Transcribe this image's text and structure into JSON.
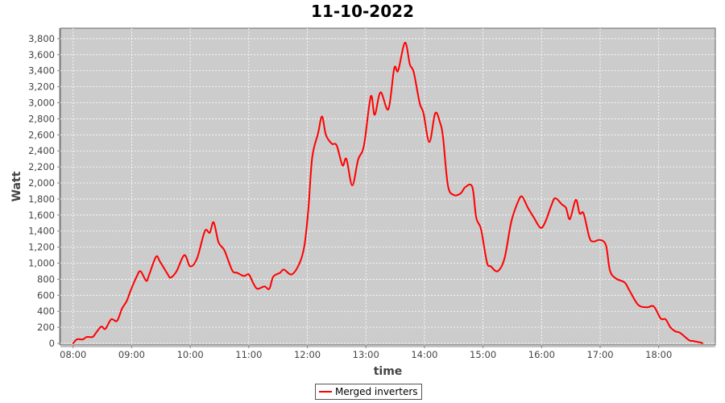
{
  "chart_data": {
    "type": "line",
    "title": "11-10-2022",
    "xlabel": "time",
    "ylabel": "Watt",
    "xlim": [
      "07:47",
      "18:58"
    ],
    "ylim": [
      -20,
      3930
    ],
    "x_ticks": [
      "08:00",
      "09:00",
      "10:00",
      "11:00",
      "12:00",
      "13:00",
      "14:00",
      "15:00",
      "16:00",
      "17:00",
      "18:00"
    ],
    "y_ticks": [
      0,
      200,
      400,
      600,
      800,
      1000,
      1200,
      1400,
      1600,
      1800,
      2000,
      2200,
      2400,
      2600,
      2800,
      3000,
      3200,
      3400,
      3600,
      3800
    ],
    "grid": true,
    "legend_position": "bottom",
    "colors": {
      "plot_background": "#cccccc",
      "grid": "#ffffff",
      "series": "#ff0000"
    },
    "series": [
      {
        "name": "Merged inverters",
        "points": [
          [
            "08:00",
            0
          ],
          [
            "08:04",
            50
          ],
          [
            "08:10",
            50
          ],
          [
            "08:14",
            80
          ],
          [
            "08:20",
            80
          ],
          [
            "08:24",
            140
          ],
          [
            "08:29",
            210
          ],
          [
            "08:33",
            180
          ],
          [
            "08:39",
            300
          ],
          [
            "08:45",
            280
          ],
          [
            "08:50",
            430
          ],
          [
            "08:55",
            530
          ],
          [
            "08:59",
            660
          ],
          [
            "09:05",
            830
          ],
          [
            "09:09",
            900
          ],
          [
            "09:15",
            780
          ],
          [
            "09:18",
            860
          ],
          [
            "09:25",
            1080
          ],
          [
            "09:29",
            1020
          ],
          [
            "09:37",
            860
          ],
          [
            "09:40",
            820
          ],
          [
            "09:46",
            900
          ],
          [
            "09:54",
            1100
          ],
          [
            "10:00",
            960
          ],
          [
            "10:07",
            1060
          ],
          [
            "10:15",
            1400
          ],
          [
            "10:20",
            1380
          ],
          [
            "10:24",
            1510
          ],
          [
            "10:29",
            1260
          ],
          [
            "10:35",
            1160
          ],
          [
            "10:43",
            910
          ],
          [
            "10:48",
            880
          ],
          [
            "10:55",
            840
          ],
          [
            "11:00",
            860
          ],
          [
            "11:05",
            740
          ],
          [
            "11:09",
            680
          ],
          [
            "11:16",
            710
          ],
          [
            "11:21",
            680
          ],
          [
            "11:25",
            830
          ],
          [
            "11:32",
            880
          ],
          [
            "11:36",
            920
          ],
          [
            "11:44",
            860
          ],
          [
            "11:52",
            1000
          ],
          [
            "11:57",
            1220
          ],
          [
            "12:01",
            1670
          ],
          [
            "12:05",
            2320
          ],
          [
            "12:11",
            2620
          ],
          [
            "12:15",
            2830
          ],
          [
            "12:19",
            2600
          ],
          [
            "12:25",
            2490
          ],
          [
            "12:30",
            2470
          ],
          [
            "12:36",
            2220
          ],
          [
            "12:40",
            2300
          ],
          [
            "12:46",
            1970
          ],
          [
            "12:52",
            2290
          ],
          [
            "12:58",
            2470
          ],
          [
            "13:05",
            3080
          ],
          [
            "13:09",
            2850
          ],
          [
            "13:15",
            3130
          ],
          [
            "13:23",
            2920
          ],
          [
            "13:29",
            3430
          ],
          [
            "13:33",
            3400
          ],
          [
            "13:40",
            3750
          ],
          [
            "13:45",
            3480
          ],
          [
            "13:49",
            3380
          ],
          [
            "13:55",
            3000
          ],
          [
            "13:59",
            2870
          ],
          [
            "14:05",
            2510
          ],
          [
            "14:11",
            2870
          ],
          [
            "14:16",
            2750
          ],
          [
            "14:19",
            2570
          ],
          [
            "14:24",
            1970
          ],
          [
            "14:30",
            1850
          ],
          [
            "14:37",
            1870
          ],
          [
            "14:42",
            1950
          ],
          [
            "14:49",
            1950
          ],
          [
            "14:53",
            1570
          ],
          [
            "14:58",
            1420
          ],
          [
            "15:04",
            1010
          ],
          [
            "15:08",
            960
          ],
          [
            "15:15",
            900
          ],
          [
            "15:22",
            1060
          ],
          [
            "15:29",
            1520
          ],
          [
            "15:36",
            1770
          ],
          [
            "15:40",
            1830
          ],
          [
            "15:46",
            1690
          ],
          [
            "15:52",
            1570
          ],
          [
            "15:59",
            1440
          ],
          [
            "16:04",
            1520
          ],
          [
            "16:10",
            1720
          ],
          [
            "16:14",
            1810
          ],
          [
            "16:21",
            1730
          ],
          [
            "16:25",
            1690
          ],
          [
            "16:29",
            1550
          ],
          [
            "16:35",
            1790
          ],
          [
            "16:39",
            1620
          ],
          [
            "16:43",
            1620
          ],
          [
            "16:49",
            1320
          ],
          [
            "16:53",
            1270
          ],
          [
            "17:00",
            1290
          ],
          [
            "17:06",
            1220
          ],
          [
            "17:10",
            910
          ],
          [
            "17:16",
            810
          ],
          [
            "17:25",
            760
          ],
          [
            "17:30",
            660
          ],
          [
            "17:39",
            480
          ],
          [
            "17:48",
            450
          ],
          [
            "17:55",
            460
          ],
          [
            "18:02",
            310
          ],
          [
            "18:07",
            300
          ],
          [
            "18:12",
            200
          ],
          [
            "18:17",
            150
          ],
          [
            "18:22",
            130
          ],
          [
            "18:31",
            40
          ],
          [
            "18:35",
            30
          ],
          [
            "18:43",
            10
          ],
          [
            "18:45",
            0
          ]
        ]
      }
    ]
  }
}
